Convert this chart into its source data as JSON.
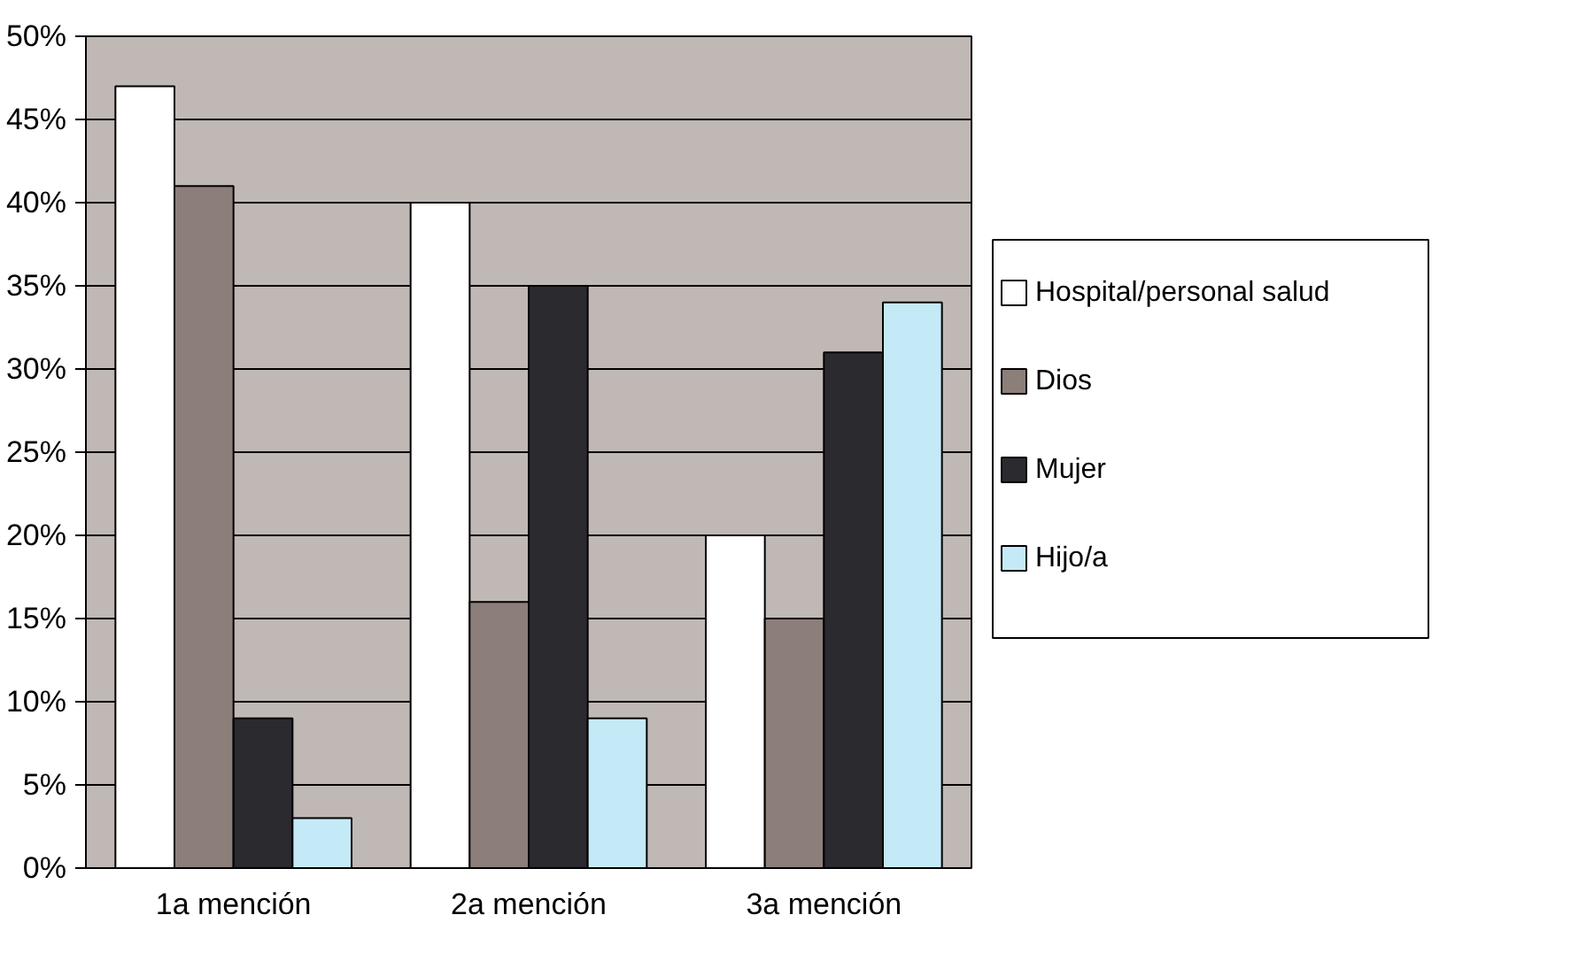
{
  "chart_data": {
    "type": "bar",
    "categories": [
      "1a mención",
      "2a mención",
      "3a mención"
    ],
    "series": [
      {
        "name": "Hospital/personal salud",
        "color": "#ffffff",
        "values": [
          47,
          40,
          20
        ]
      },
      {
        "name": "Dios",
        "color": "#8c7f7a",
        "values": [
          41,
          16,
          15
        ]
      },
      {
        "name": "Mujer",
        "color": "#2b2a2e",
        "values": [
          9,
          35,
          31
        ]
      },
      {
        "name": "Hijo/a",
        "color": "#c5eaf7",
        "values": [
          3,
          9,
          34
        ]
      }
    ],
    "ylim": [
      0,
      50
    ],
    "yticks": [
      {
        "value": 0,
        "label": "0%"
      },
      {
        "value": 5,
        "label": "5%"
      },
      {
        "value": 10,
        "label": "10%"
      },
      {
        "value": 15,
        "label": "15%"
      },
      {
        "value": 20,
        "label": "20%"
      },
      {
        "value": 25,
        "label": "25%"
      },
      {
        "value": 30,
        "label": "30%"
      },
      {
        "value": 35,
        "label": "35%"
      },
      {
        "value": 40,
        "label": "40%"
      },
      {
        "value": 45,
        "label": "45%"
      },
      {
        "value": 50,
        "label": "50%"
      }
    ],
    "grid": "y",
    "legend": "right"
  }
}
